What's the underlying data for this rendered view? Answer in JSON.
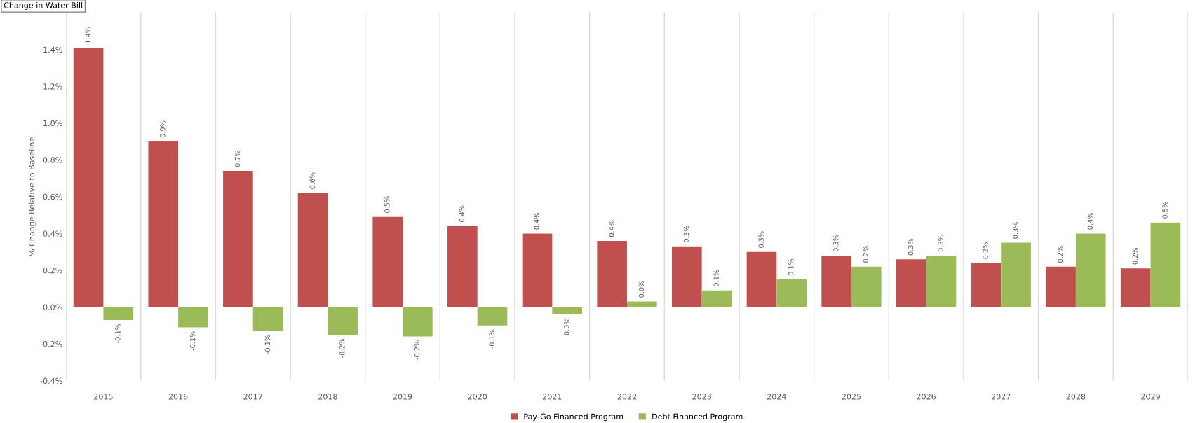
{
  "chart_data": {
    "type": "bar",
    "title": "Change in Water Bill",
    "ylabel": "% Change Relative to Baseline",
    "categories": [
      "2015",
      "2016",
      "2017",
      "2018",
      "2019",
      "2020",
      "2021",
      "2022",
      "2023",
      "2024",
      "2025",
      "2026",
      "2027",
      "2028",
      "2029"
    ],
    "series": [
      {
        "name": "Pay-Go Financed Program",
        "color": "#c0504d",
        "values": [
          1.41,
          0.9,
          0.74,
          0.62,
          0.49,
          0.44,
          0.4,
          0.36,
          0.33,
          0.3,
          0.28,
          0.26,
          0.24,
          0.22,
          0.21
        ],
        "value_labels": [
          "1.4%",
          "0.9%",
          "0.7%",
          "0.6%",
          "0.5%",
          "0.4%",
          "0.4%",
          "0.4%",
          "0.3%",
          "0.3%",
          "0.3%",
          "0.3%",
          "0.2%",
          "0.2%",
          "0.2%"
        ]
      },
      {
        "name": "Debt Financed Program",
        "color": "#9bbb59",
        "values": [
          -0.07,
          -0.11,
          -0.13,
          -0.15,
          -0.16,
          -0.1,
          -0.04,
          0.03,
          0.09,
          0.15,
          0.22,
          0.28,
          0.35,
          0.4,
          0.46
        ],
        "value_labels": [
          "-0.1%",
          "-0.1%",
          "-0.1%",
          "-0.2%",
          "-0.2%",
          "-0.1%",
          "0.0%",
          "0.0%",
          "0.1%",
          "0.1%",
          "0.2%",
          "0.3%",
          "0.3%",
          "0.4%",
          "0.5%"
        ]
      }
    ],
    "ylim": [
      -0.4,
      1.6
    ],
    "yticks": [
      {
        "value": -0.4,
        "label": "-0.4%"
      },
      {
        "value": -0.2,
        "label": "-0.2%"
      },
      {
        "value": 0,
        "label": "0.0%"
      },
      {
        "value": 0.2,
        "label": "0.2%"
      },
      {
        "value": 0.4,
        "label": "0.4%"
      },
      {
        "value": 0.6,
        "label": "0.6%"
      },
      {
        "value": 0.8,
        "label": "0.8%"
      },
      {
        "value": 1.0,
        "label": "1.0%"
      },
      {
        "value": 1.2,
        "label": "1.2%"
      },
      {
        "value": 1.4,
        "label": "1.4%"
      }
    ],
    "grid": "x",
    "legend": "bottom"
  }
}
